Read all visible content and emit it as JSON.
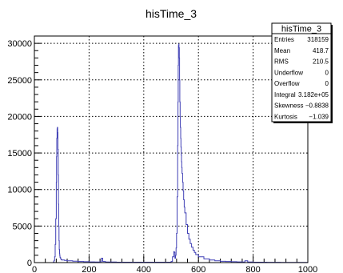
{
  "chart_data": {
    "type": "histogram",
    "title": "hisTime_3",
    "xlabel": "",
    "ylabel": "",
    "xlim": [
      0,
      1000
    ],
    "ylim": [
      0,
      31000
    ],
    "x_ticks": [
      0,
      200,
      400,
      600,
      800,
      1000
    ],
    "y_ticks": [
      0,
      5000,
      10000,
      15000,
      20000,
      25000,
      30000
    ],
    "grid": true,
    "line_color": "#3f3fb5",
    "series": [
      {
        "x": [
          60,
          70,
          72,
          74,
          76,
          78,
          80,
          81,
          82,
          83,
          84,
          85,
          86,
          87,
          88,
          89,
          90,
          91,
          92,
          93,
          94,
          96,
          98,
          100,
          110,
          120,
          140,
          160,
          180,
          200,
          220,
          240,
          245,
          250,
          260,
          300,
          350,
          400,
          450,
          480,
          500,
          505,
          510,
          512,
          514,
          516,
          518,
          520,
          522,
          524,
          525,
          526,
          527,
          528,
          529,
          530,
          531,
          532,
          533,
          534,
          535,
          536,
          537,
          538,
          539,
          540,
          542,
          544,
          546,
          548,
          550,
          555,
          560,
          565,
          570,
          575,
          580,
          585,
          590,
          600,
          620,
          640,
          660,
          680,
          700,
          720,
          740,
          760,
          770,
          780,
          800,
          850,
          900,
          950,
          1000
        ],
        "y": [
          0,
          100,
          300,
          800,
          2500,
          6000,
          11000,
          14500,
          17000,
          18300,
          18500,
          17800,
          15500,
          12000,
          8000,
          5000,
          3000,
          1800,
          1200,
          900,
          700,
          500,
          400,
          350,
          300,
          250,
          200,
          150,
          120,
          100,
          90,
          120,
          600,
          150,
          80,
          60,
          50,
          50,
          50,
          60,
          150,
          800,
          1500,
          1400,
          600,
          1000,
          2000,
          4000,
          9000,
          16000,
          22000,
          27000,
          29700,
          29900,
          29400,
          28000,
          25000,
          22000,
          20000,
          18500,
          17000,
          15800,
          14700,
          13800,
          13000,
          12200,
          11000,
          9800,
          8600,
          7600,
          6800,
          5200,
          4000,
          3200,
          2600,
          2100,
          1700,
          1400,
          1100,
          800,
          500,
          350,
          250,
          180,
          150,
          120,
          100,
          80,
          250,
          80,
          60,
          40,
          30,
          20,
          0
        ]
      }
    ]
  },
  "stats": {
    "title": "hisTime_3",
    "rows": [
      {
        "label": "Entries",
        "value": "318159"
      },
      {
        "label": "Mean",
        "value": "418.7"
      },
      {
        "label": "RMS",
        "value": "210.5"
      },
      {
        "label": "Underflow",
        "value": "0"
      },
      {
        "label": "Overflow",
        "value": "0"
      },
      {
        "label": "Integral",
        "value": "3.182e+05"
      },
      {
        "label": "Skewness",
        "value": "−0.8838"
      },
      {
        "label": "Kurtosis",
        "value": "−1.039"
      }
    ]
  }
}
